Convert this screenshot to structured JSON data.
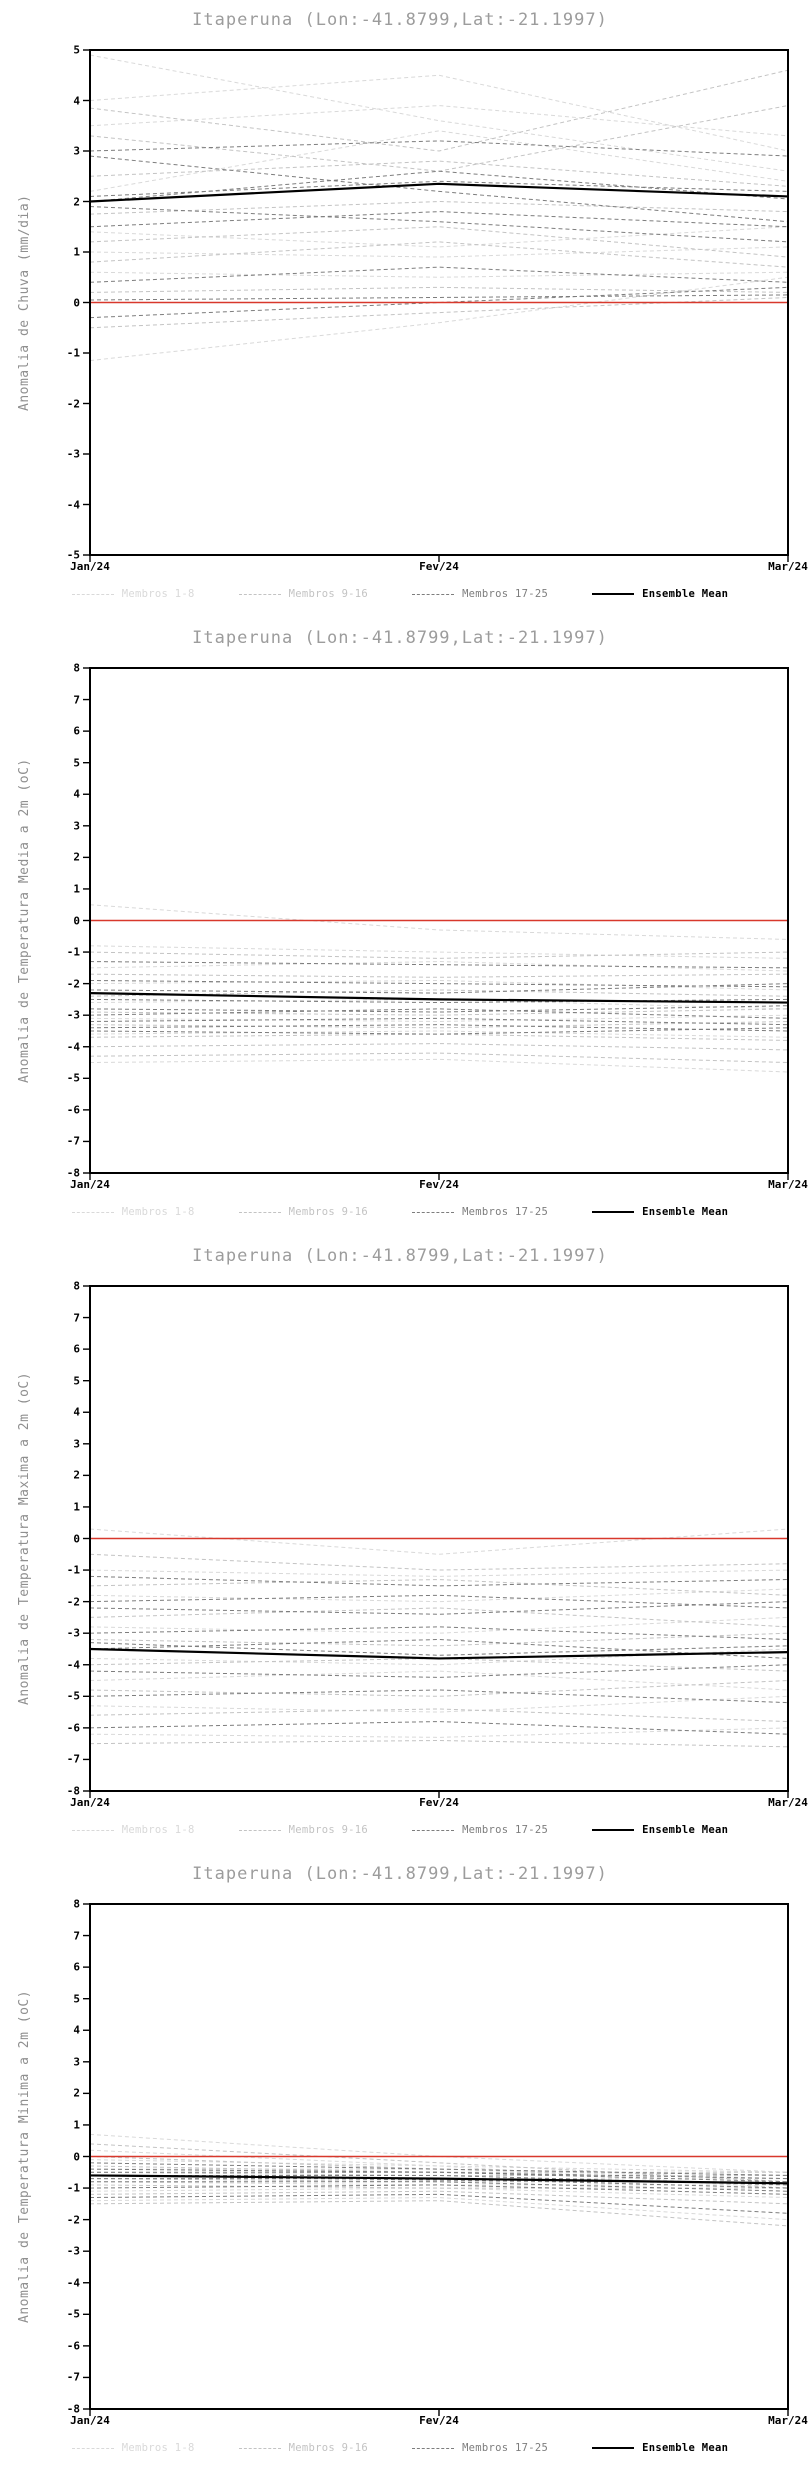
{
  "colors": {
    "title": "#9c9c9c",
    "ylabel": "#8f8f8f",
    "axis": "#000000",
    "tick_label": "#000000",
    "members_1_8": "#d9d9d9",
    "members_9_16": "#c3c3c3",
    "members_17_25": "#7d7d7d",
    "ensemble_mean": "#000000",
    "zero_line": "#d8382c"
  },
  "legend": {
    "items": [
      {
        "label": "Membros 1-8",
        "color": "#d9d9d9",
        "style": "dashed"
      },
      {
        "label": "Membros 9-16",
        "color": "#c3c3c3",
        "style": "dashed"
      },
      {
        "label": "Membros 17-25",
        "color": "#7d7d7d",
        "style": "dashed"
      },
      {
        "label": "Ensemble Mean",
        "color": "#000000",
        "style": "solid"
      }
    ]
  },
  "chart_data": [
    {
      "type": "line",
      "title": "Itaperuna (Lon:-41.8799,Lat:-21.1997)",
      "ylabel": "Anomalia de Chuva (mm/dia)",
      "x_labels": [
        "Jan/24",
        "Fev/24",
        "Mar/24"
      ],
      "ylim": [
        -5,
        5
      ],
      "ytick_step": 1,
      "zero_reference": 0,
      "series": [
        {
          "name": "Membros 1-8",
          "group": "members_1_8",
          "lines": [
            [
              4.9,
              3.6,
              2.6
            ],
            [
              4.0,
              4.5,
              3.0
            ],
            [
              3.5,
              3.9,
              3.3
            ],
            [
              2.2,
              3.4,
              2.4
            ],
            [
              1.4,
              1.1,
              1.5
            ],
            [
              1.0,
              0.9,
              1.1
            ],
            [
              0.6,
              0.5,
              0.6
            ],
            [
              -1.15,
              -0.4,
              0.5
            ]
          ]
        },
        {
          "name": "Membros 9-16",
          "group": "members_9_16",
          "lines": [
            [
              3.85,
              3.0,
              4.6
            ],
            [
              3.3,
              2.6,
              3.9
            ],
            [
              2.5,
              2.8,
              2.3
            ],
            [
              1.75,
              2.0,
              1.8
            ],
            [
              1.2,
              1.5,
              0.9
            ],
            [
              0.8,
              1.2,
              0.7
            ],
            [
              0.2,
              0.3,
              0.2
            ],
            [
              -0.5,
              -0.2,
              0.1
            ]
          ]
        },
        {
          "name": "Membros 17-25",
          "group": "members_17_25",
          "lines": [
            [
              3.0,
              3.2,
              2.9
            ],
            [
              2.9,
              2.2,
              1.6
            ],
            [
              2.1,
              2.4,
              2.2
            ],
            [
              1.9,
              1.6,
              1.2
            ],
            [
              1.5,
              1.8,
              1.5
            ],
            [
              0.4,
              0.7,
              0.4
            ],
            [
              0.05,
              0.1,
              0.15
            ],
            [
              -0.3,
              0.0,
              0.3
            ],
            [
              2.0,
              2.6,
              2.05
            ]
          ]
        },
        {
          "name": "Ensemble Mean",
          "group": "ensemble_mean",
          "lines": [
            [
              2.0,
              2.35,
              2.1
            ]
          ]
        }
      ]
    },
    {
      "type": "line",
      "title": "Itaperuna (Lon:-41.8799,Lat:-21.1997)",
      "ylabel": "Anomalia de Temperatura Media a 2m (oC)",
      "x_labels": [
        "Jan/24",
        "Fev/24",
        "Mar/24"
      ],
      "ylim": [
        -8,
        8
      ],
      "ytick_step": 1,
      "zero_reference": 0,
      "series": [
        {
          "name": "Membros 1-8",
          "group": "members_1_8",
          "lines": [
            [
              0.5,
              -0.3,
              -0.6
            ],
            [
              -0.8,
              -1.0,
              -1.2
            ],
            [
              -1.5,
              -1.3,
              -1.6
            ],
            [
              -2.0,
              -1.9,
              -2.2
            ],
            [
              -2.6,
              -2.5,
              -2.8
            ],
            [
              -3.1,
              -3.2,
              -3.0
            ],
            [
              -3.6,
              -3.5,
              -3.7
            ],
            [
              -4.5,
              -4.4,
              -4.8
            ]
          ]
        },
        {
          "name": "Membros 9-16",
          "group": "members_9_16",
          "lines": [
            [
              -1.0,
              -1.2,
              -1.0
            ],
            [
              -1.7,
              -1.8,
              -1.7
            ],
            [
              -2.4,
              -2.2,
              -2.4
            ],
            [
              -2.9,
              -3.0,
              -2.8
            ],
            [
              -3.3,
              -3.4,
              -3.2
            ],
            [
              -3.7,
              -3.6,
              -3.8
            ],
            [
              -4.0,
              -3.9,
              -4.1
            ],
            [
              -4.3,
              -4.2,
              -4.5
            ]
          ]
        },
        {
          "name": "Membros 17-25",
          "group": "members_17_25",
          "lines": [
            [
              -1.3,
              -1.4,
              -1.5
            ],
            [
              -1.9,
              -2.0,
              -2.1
            ],
            [
              -2.2,
              -2.3,
              -2.0
            ],
            [
              -2.5,
              -2.6,
              -2.5
            ],
            [
              -2.8,
              -2.9,
              -2.7
            ],
            [
              -3.0,
              -2.8,
              -3.1
            ],
            [
              -3.2,
              -3.1,
              -3.3
            ],
            [
              -3.4,
              -3.3,
              -3.5
            ],
            [
              -3.5,
              -3.6,
              -3.4
            ]
          ]
        },
        {
          "name": "Ensemble Mean",
          "group": "ensemble_mean",
          "lines": [
            [
              -2.3,
              -2.5,
              -2.6
            ]
          ]
        }
      ]
    },
    {
      "type": "line",
      "title": "Itaperuna (Lon:-41.8799,Lat:-21.1997)",
      "ylabel": "Anomalia de Temperatura Maxima a 2m (oC)",
      "x_labels": [
        "Jan/24",
        "Fev/24",
        "Mar/24"
      ],
      "ylim": [
        -8,
        8
      ],
      "ytick_step": 1,
      "zero_reference": 0,
      "series": [
        {
          "name": "Membros 1-8",
          "group": "members_1_8",
          "lines": [
            [
              0.3,
              -0.5,
              0.3
            ],
            [
              -1.0,
              -1.2,
              -1.0
            ],
            [
              -1.8,
              -2.0,
              -1.6
            ],
            [
              -2.8,
              -3.0,
              -2.5
            ],
            [
              -3.8,
              -4.0,
              -3.5
            ],
            [
              -4.5,
              -4.2,
              -4.8
            ],
            [
              -5.3,
              -5.5,
              -5.0
            ],
            [
              -6.2,
              -6.3,
              -6.0
            ]
          ]
        },
        {
          "name": "Membros 9-16",
          "group": "members_9_16",
          "lines": [
            [
              -0.5,
              -1.0,
              -0.8
            ],
            [
              -1.5,
              -1.3,
              -1.8
            ],
            [
              -2.5,
              -2.2,
              -2.8
            ],
            [
              -3.2,
              -3.4,
              -3.0
            ],
            [
              -4.0,
              -3.8,
              -4.2
            ],
            [
              -4.8,
              -5.0,
              -4.5
            ],
            [
              -5.6,
              -5.4,
              -5.8
            ],
            [
              -6.5,
              -6.4,
              -6.6
            ]
          ]
        },
        {
          "name": "Membros 17-25",
          "group": "members_17_25",
          "lines": [
            [
              -1.2,
              -1.5,
              -1.3
            ],
            [
              -2.0,
              -1.8,
              -2.2
            ],
            [
              -2.2,
              -2.4,
              -2.0
            ],
            [
              -3.0,
              -2.8,
              -3.2
            ],
            [
              -3.5,
              -3.2,
              -3.8
            ],
            [
              -4.2,
              -4.4,
              -4.0
            ],
            [
              -5.0,
              -4.8,
              -5.2
            ],
            [
              -6.0,
              -5.8,
              -6.2
            ],
            [
              -3.3,
              -3.7,
              -3.4
            ]
          ]
        },
        {
          "name": "Ensemble Mean",
          "group": "ensemble_mean",
          "lines": [
            [
              -3.5,
              -3.8,
              -3.6
            ]
          ]
        }
      ]
    },
    {
      "type": "line",
      "title": "Itaperuna (Lon:-41.8799,Lat:-21.1997)",
      "ylabel": "Anomalia de Temperatura Minima a 2m (oC)",
      "x_labels": [
        "Jan/24",
        "Fev/24",
        "Mar/24"
      ],
      "ylim": [
        -8,
        8
      ],
      "ytick_step": 1,
      "zero_reference": 0,
      "series": [
        {
          "name": "Membros 1-8",
          "group": "members_1_8",
          "lines": [
            [
              0.7,
              0.0,
              -0.5
            ],
            [
              0.2,
              -0.3,
              -1.0
            ],
            [
              -0.1,
              -0.3,
              -0.5
            ],
            [
              -0.4,
              -0.4,
              -0.7
            ],
            [
              -0.6,
              -0.7,
              -0.7
            ],
            [
              -0.8,
              -0.9,
              -0.9
            ],
            [
              -1.1,
              -1.0,
              -1.3
            ],
            [
              -1.4,
              -1.3,
              -2.0
            ]
          ]
        },
        {
          "name": "Membros 9-16",
          "group": "members_9_16",
          "lines": [
            [
              0.4,
              -0.2,
              -0.8
            ],
            [
              0.0,
              -0.4,
              -0.6
            ],
            [
              -0.3,
              -0.5,
              -0.5
            ],
            [
              -0.5,
              -0.6,
              -0.6
            ],
            [
              -0.7,
              -0.8,
              -0.8
            ],
            [
              -0.9,
              -1.0,
              -1.0
            ],
            [
              -1.2,
              -1.1,
              -1.5
            ],
            [
              -1.5,
              -1.4,
              -2.2
            ]
          ]
        },
        {
          "name": "Membros 17-25",
          "group": "members_17_25",
          "lines": [
            [
              -0.2,
              -0.4,
              -0.6
            ],
            [
              -0.4,
              -0.5,
              -0.7
            ],
            [
              -0.5,
              -0.5,
              -0.8
            ],
            [
              -0.6,
              -0.6,
              -0.9
            ],
            [
              -0.7,
              -0.7,
              -1.0
            ],
            [
              -0.8,
              -0.8,
              -1.1
            ],
            [
              -1.0,
              -0.9,
              -1.2
            ],
            [
              -1.3,
              -1.2,
              -1.8
            ],
            [
              -0.6,
              -0.75,
              -0.85
            ]
          ]
        },
        {
          "name": "Ensemble Mean",
          "group": "ensemble_mean",
          "lines": [
            [
              -0.6,
              -0.7,
              -0.85
            ]
          ]
        }
      ]
    }
  ]
}
